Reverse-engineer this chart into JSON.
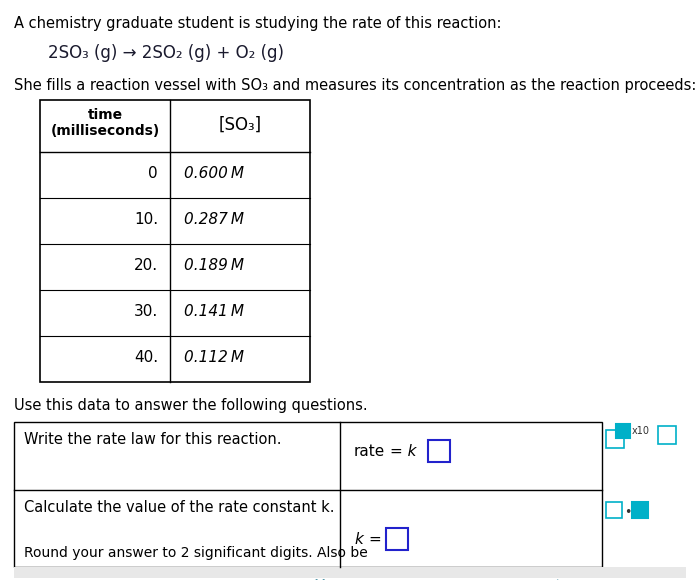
{
  "bg_color": "#ffffff",
  "text_color": "#000000",
  "teal_color": "#00B0C8",
  "blue_box_color": "#0000CC",
  "intro_text": "A chemistry graduate student is studying the rate of this reaction:",
  "reaction": "2SO₃ (g) → 2SO₂ (g) + O₂ (g)",
  "fill_text": "She fills a reaction vessel with SO₃ and measures its concentration as the reaction proceeds:",
  "table_header_col1": "time\n(milliseconds)",
  "table_header_col2": "[SO₃]",
  "table_data": [
    [
      "0",
      "0.600 M"
    ],
    [
      "10.",
      "0.287 M"
    ],
    [
      "20.",
      "0.189 M"
    ],
    [
      "30.",
      "0.141 M"
    ],
    [
      "40.",
      "0.112 M"
    ]
  ],
  "use_text": "Use this data to answer the following questions.",
  "q1_text": "Write the rate law for this reaction.",
  "q1_answer": "rate  = k",
  "q2_text": "Calculate the value of the rate constant k.",
  "q2_answer": "k =",
  "round_text": "Round your answer to 2 significant digits. Also be"
}
